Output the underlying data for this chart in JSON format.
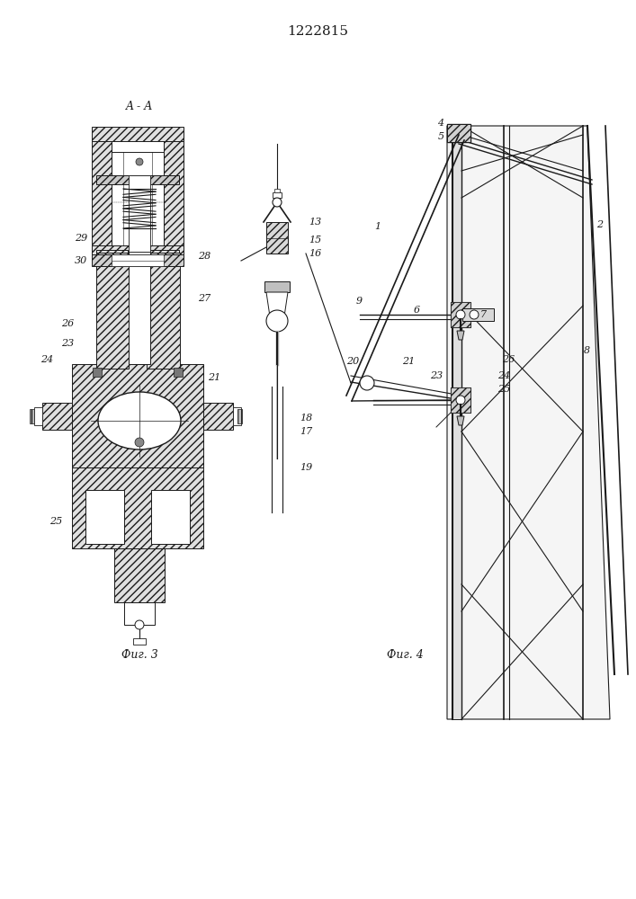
{
  "title": "1222815",
  "bg_color": "#ffffff",
  "line_color": "#1a1a1a",
  "fig3_label": "Фиг. 3",
  "fig4_label": "Фиг. 4",
  "section_label": "A - A"
}
